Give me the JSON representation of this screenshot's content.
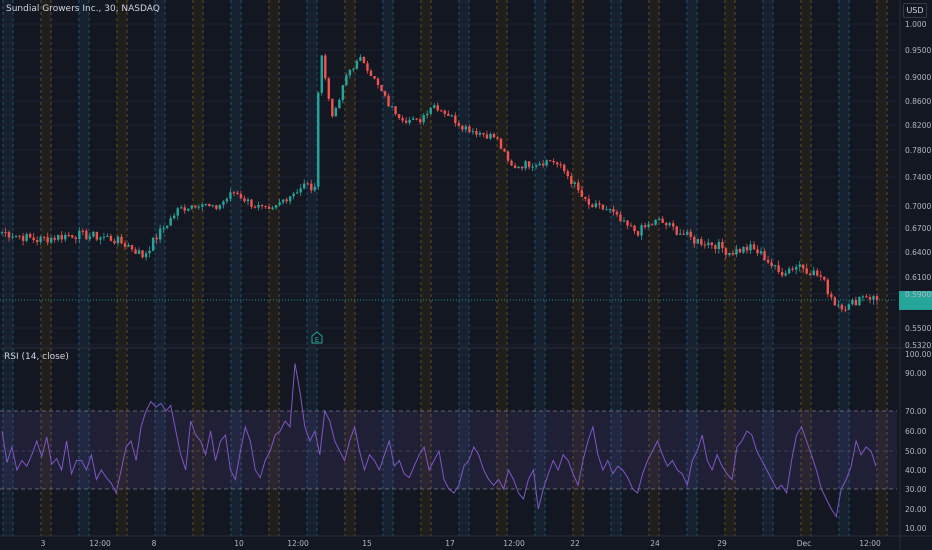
{
  "header": {
    "title": "Sundial Growers Inc., 30, NASDAQ",
    "currency": "USD"
  },
  "rsi_panel": {
    "label": "RSI (14, close)"
  },
  "earnings_marker": {
    "label": "E"
  },
  "colors": {
    "up": "#26a69a",
    "down": "#ef5350",
    "rsi": "#7e57c2",
    "background": "#131722",
    "grid": "#1e222d",
    "price_line": "#26a69a"
  },
  "chart_data": [
    {
      "type": "candlestick",
      "title": "Sundial Growers Inc., 30, NASDAQ",
      "x_tick_labels": [
        "3",
        "12:00",
        "8",
        "10",
        "12:00",
        "15",
        "17",
        "12:00",
        "22",
        "24",
        "29",
        "Dec",
        "12:00"
      ],
      "y_tick_labels": [
        "1.000",
        "0.9500",
        "0.9000",
        "0.8600",
        "0.8200",
        "0.7800",
        "0.7400",
        "0.7000",
        "0.6700",
        "0.6400",
        "0.6100",
        "0.5900",
        "0.5500",
        "0.5320"
      ],
      "ylim": [
        0.532,
        1.0
      ],
      "last_price": 0.583,
      "approx_close_path": [
        [
          0,
          0.665
        ],
        [
          5,
          0.655
        ],
        [
          10,
          0.662
        ],
        [
          15,
          0.658
        ],
        [
          18,
          0.648
        ],
        [
          20,
          0.635
        ],
        [
          22,
          0.66
        ],
        [
          25,
          0.695
        ],
        [
          28,
          0.705
        ],
        [
          30,
          0.695
        ],
        [
          33,
          0.72
        ],
        [
          35,
          0.705
        ],
        [
          38,
          0.69
        ],
        [
          40,
          0.71
        ],
        [
          43,
          0.73
        ],
        [
          44.5,
          0.72
        ],
        [
          45,
          0.97
        ],
        [
          46,
          0.88
        ],
        [
          47,
          0.83
        ],
        [
          49,
          0.91
        ],
        [
          51,
          0.935
        ],
        [
          53,
          0.89
        ],
        [
          55,
          0.85
        ],
        [
          57,
          0.83
        ],
        [
          59,
          0.825
        ],
        [
          61,
          0.855
        ],
        [
          63,
          0.84
        ],
        [
          65,
          0.82
        ],
        [
          67,
          0.81
        ],
        [
          70,
          0.8
        ],
        [
          72,
          0.755
        ],
        [
          75,
          0.76
        ],
        [
          78,
          0.765
        ],
        [
          80,
          0.745
        ],
        [
          83,
          0.7
        ],
        [
          86,
          0.695
        ],
        [
          88,
          0.675
        ],
        [
          90,
          0.665
        ],
        [
          93,
          0.68
        ],
        [
          96,
          0.665
        ],
        [
          98,
          0.655
        ],
        [
          101,
          0.65
        ],
        [
          103,
          0.64
        ],
        [
          106,
          0.645
        ],
        [
          108,
          0.635
        ],
        [
          110,
          0.615
        ],
        [
          113,
          0.625
        ],
        [
          116,
          0.61
        ],
        [
          118,
          0.58
        ],
        [
          120,
          0.575
        ],
        [
          122,
          0.59
        ],
        [
          124,
          0.583
        ]
      ]
    },
    {
      "type": "line",
      "title": "RSI (14, close)",
      "y_tick_labels": [
        "100.00",
        "90.00",
        "70.00",
        "60.00",
        "50.00",
        "40.00",
        "30.00",
        "20.00",
        "10.00"
      ],
      "ylim": [
        4,
        100
      ],
      "band": [
        30,
        70
      ],
      "midline": 50,
      "series": [
        {
          "values": [
            60,
            44,
            52,
            40,
            45,
            42,
            48,
            55,
            47,
            57,
            43,
            46,
            40,
            55,
            38,
            45,
            45,
            40,
            48,
            35,
            40,
            36,
            33,
            28,
            40,
            52,
            55,
            45,
            62,
            70,
            75,
            72,
            74,
            70,
            73,
            60,
            48,
            40,
            65,
            58,
            55,
            48,
            60,
            45,
            55,
            58,
            40,
            35,
            50,
            62,
            55,
            40,
            36,
            45,
            50,
            58,
            60,
            65,
            62,
            95,
            80,
            62,
            55,
            60,
            48,
            70,
            65,
            55,
            50,
            45,
            55,
            62,
            50,
            40,
            48,
            45,
            40,
            48,
            55,
            42,
            45,
            38,
            36,
            42,
            48,
            52,
            40,
            45,
            50,
            35,
            30,
            28,
            32,
            42,
            45,
            52,
            48,
            40,
            35,
            32,
            35,
            30,
            40,
            35,
            28,
            25,
            35,
            40,
            20,
            30,
            38,
            45,
            40,
            48,
            45,
            38,
            32,
            45,
            55,
            62,
            48,
            40,
            45,
            38,
            42,
            40,
            36,
            30,
            28,
            38,
            45,
            50,
            55,
            48,
            42,
            45,
            40,
            38,
            32,
            45,
            50,
            58,
            45,
            40,
            48,
            42,
            38,
            35,
            52,
            55,
            60,
            58,
            50,
            45,
            40,
            35,
            30,
            32,
            28,
            45,
            58,
            62,
            55,
            48,
            40,
            30,
            25,
            20,
            16,
            30,
            35,
            42,
            55,
            48,
            52,
            50,
            42
          ]
        }
      ]
    }
  ]
}
